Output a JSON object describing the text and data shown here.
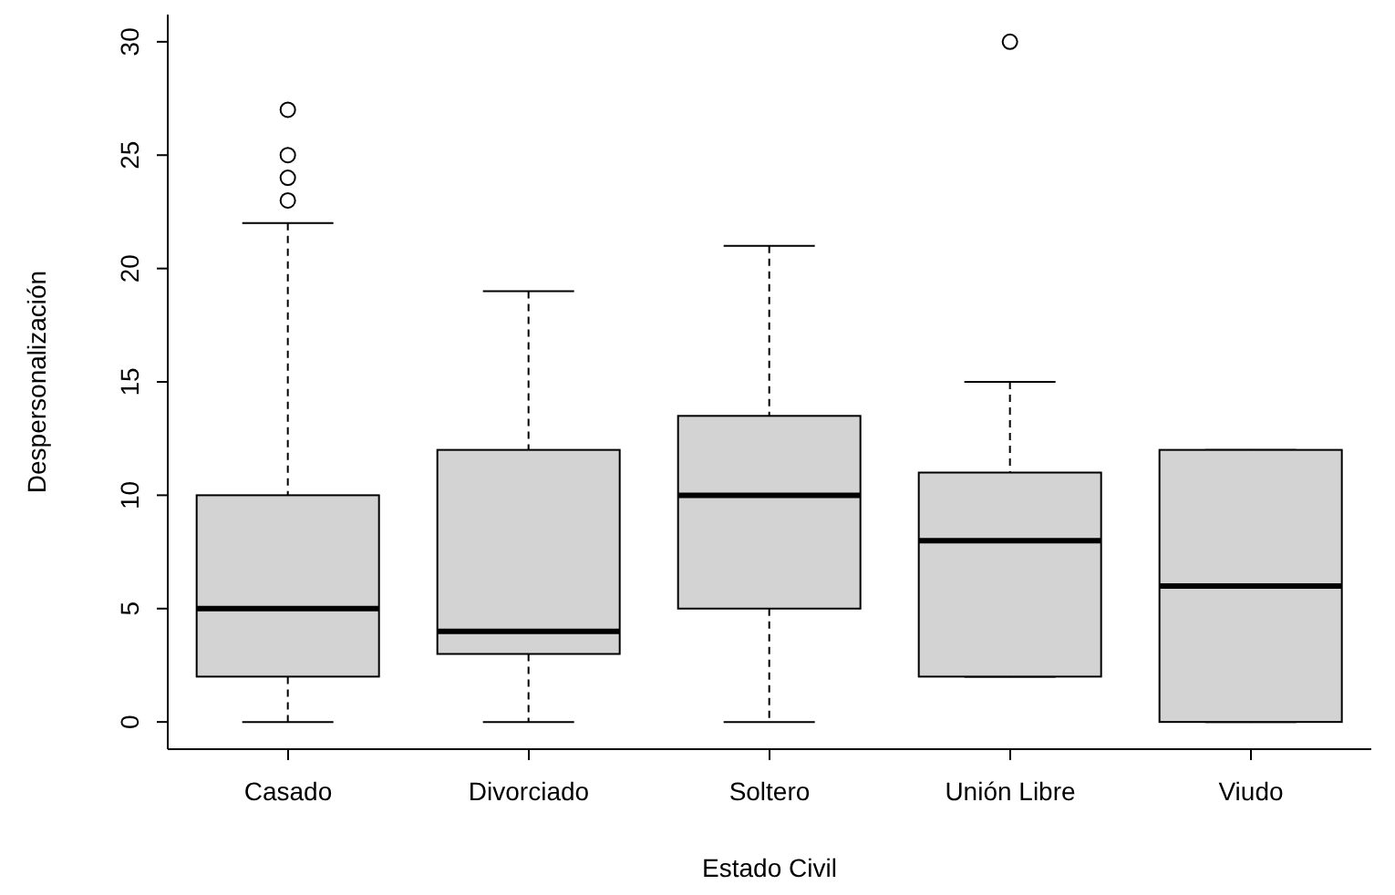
{
  "chart_data": {
    "type": "box",
    "xlabel": "Estado Civil",
    "ylabel": "Despersonalización",
    "categories": [
      "Casado",
      "Divorciado",
      "Soltero",
      "Unión Libre",
      "Viudo"
    ],
    "boxes": [
      {
        "low": 0,
        "q1": 2,
        "median": 5,
        "q3": 10,
        "high": 22,
        "outliers": [
          23,
          24,
          25,
          27
        ]
      },
      {
        "low": 0,
        "q1": 3,
        "median": 4,
        "q3": 12,
        "high": 19
      },
      {
        "low": 0,
        "q1": 5,
        "median": 10,
        "q3": 13.5,
        "high": 21
      },
      {
        "low": 2,
        "q1": 2,
        "median": 8,
        "q3": 11,
        "high": 15,
        "outliers": [
          30
        ]
      },
      {
        "low": 0,
        "q1": 0,
        "median": 6,
        "q3": 12,
        "high": 12
      }
    ],
    "color": "#d3d3d3",
    "ylim": [
      -1.2,
      31.2
    ],
    "yticks": [
      0,
      5,
      10,
      15,
      20,
      25,
      30
    ],
    "grid": false
  }
}
